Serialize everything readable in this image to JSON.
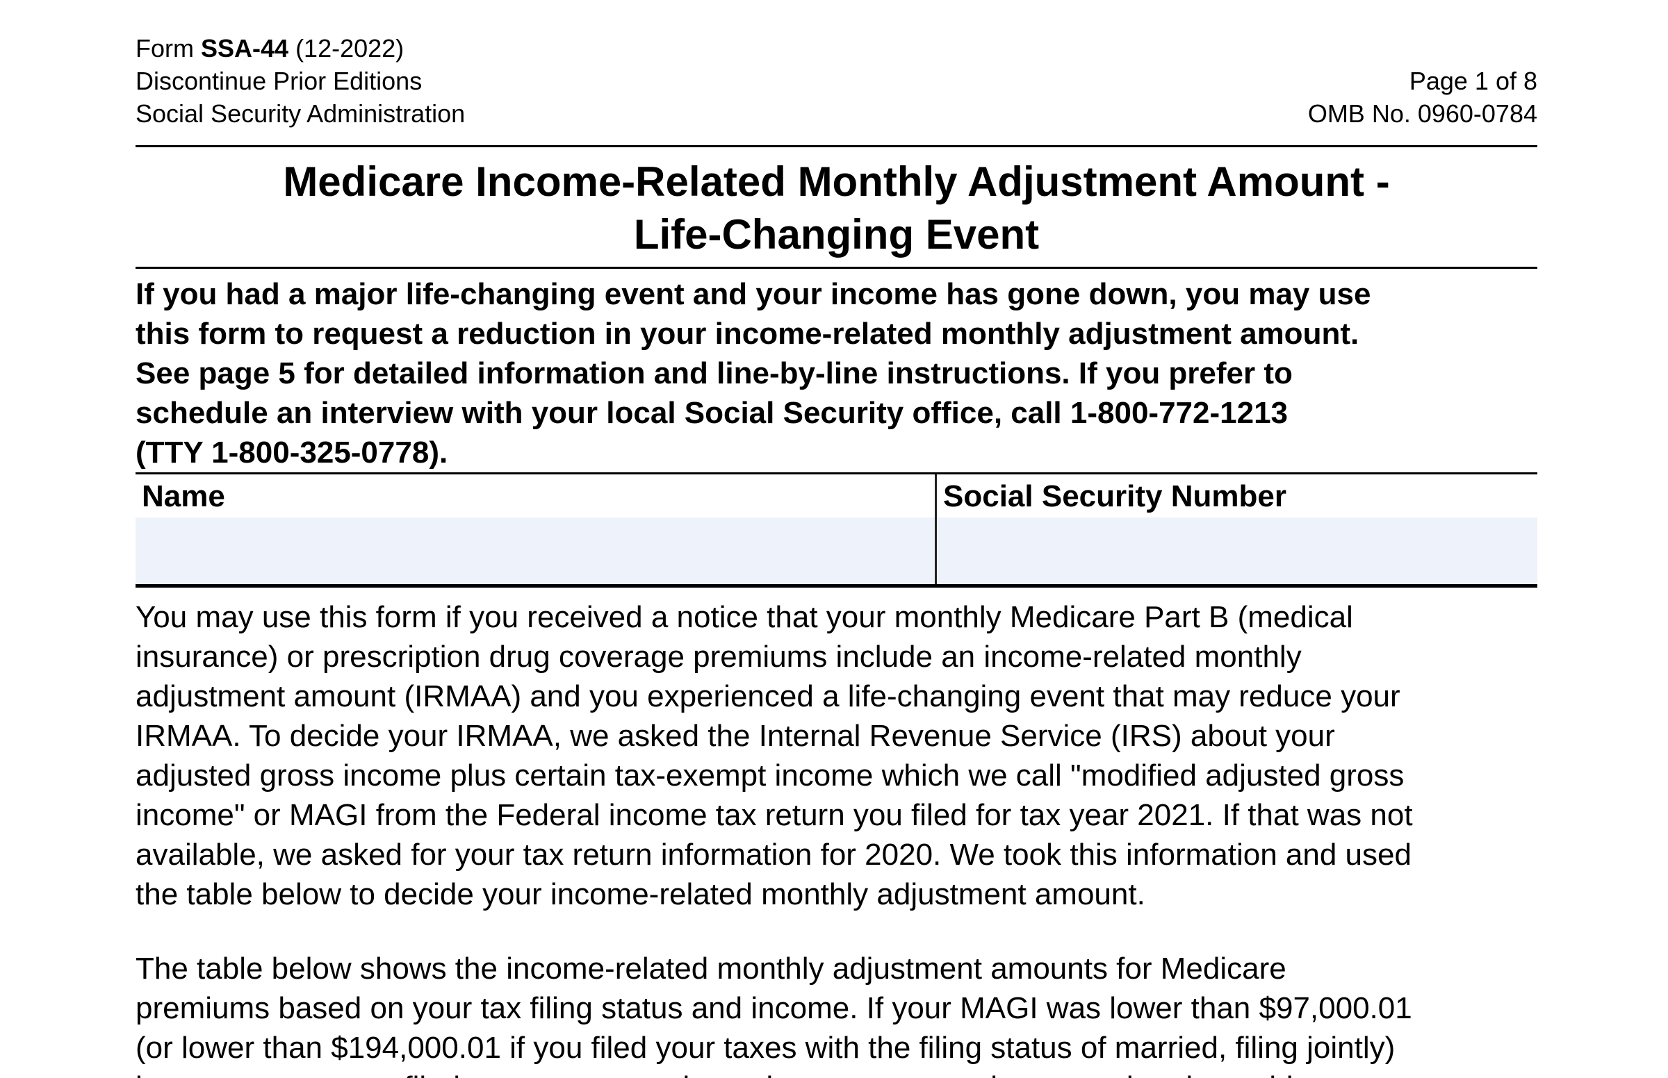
{
  "page": {
    "header": {
      "form_line_prefix": "Form ",
      "form_number": "SSA-44",
      "form_line_suffix": " (12-2022)",
      "line2": "Discontinue Prior Editions",
      "line3": "Social Security Administration",
      "page_number": "Page 1 of 8",
      "omb_number": "OMB No. 0960-0784"
    },
    "title": "Medicare Income-Related Monthly Adjustment Amount -\nLife-Changing Event",
    "intro": "If you had a major life-changing event and your income has gone down, you may use\nthis form to request a reduction in your income-related monthly adjustment amount.\nSee page 5 for detailed information and line-by-line instructions. If you prefer to\nschedule an interview with your local Social Security office, call 1-800-772-1213\n(TTY 1-800-325-0778).",
    "fields": {
      "name_label": "Name",
      "name_value": "",
      "ssn_label": "Social Security Number",
      "ssn_value": ""
    },
    "paragraph1": "You may use this form if you received a notice that your monthly Medicare Part B (medical\ninsurance) or prescription drug coverage premiums include an income-related monthly\nadjustment amount (IRMAA) and you experienced a life-changing event that may reduce your\nIRMAA. To decide your IRMAA, we asked the Internal Revenue Service (IRS) about your\nadjusted gross income plus certain tax-exempt income which we call \"modified adjusted gross\nincome\" or MAGI from the Federal income tax return you filed for tax year 2021. If that was not\navailable, we asked for your tax return information for 2020. We took this information and used\nthe table below to decide your income-related monthly adjustment amount.",
    "paragraph2": "The table below shows the income-related monthly adjustment amounts for Medicare\npremiums based on your tax filing status and income. If your MAGI was lower than $97,000.01\n(or lower than $194,000.01 if you filed your taxes with the filing status of married, filing jointly)\nin your most recent filed tax return, you do not have to pay any income-related monthly",
    "colors": {
      "field_background": "#eef2fa",
      "rule_color": "#000000"
    }
  }
}
